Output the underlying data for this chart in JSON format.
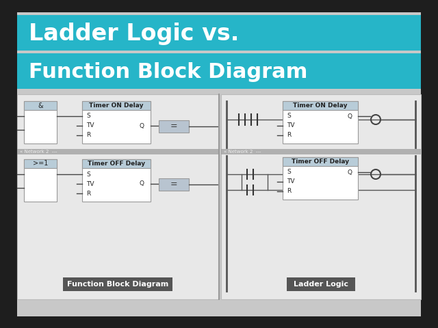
{
  "bg_outer": "#1e1e1e",
  "bg_inner": "#cccccc",
  "title_line1": "Ladder Logic vs.",
  "title_line2": "Function Block Diagram",
  "title_bg": "#26b5c8",
  "title_color": "#ffffff",
  "diagram_bg": "#e8e8e8",
  "diagram_bg2": "#d8d8da",
  "block_border": "#999999",
  "block_fill": "#ffffff",
  "block_header_fill": "#b8ccd8",
  "label_left": "Function Block Diagram",
  "label_right": "Ladder Logic",
  "label_bg": "#555555",
  "label_color": "#ffffff",
  "network_bar_color": "#999999",
  "equals_fill": "#b8c4d0",
  "timer_on_delay": "Timer ON Delay",
  "timer_off_delay": "Timer OFF Delay",
  "and_label": "&",
  "or_label": ">=1",
  "s_label": "S",
  "tv_label": "TV",
  "r_label": "R",
  "q_label": "Q",
  "line_color": "#444444",
  "rail_color": "#555555"
}
